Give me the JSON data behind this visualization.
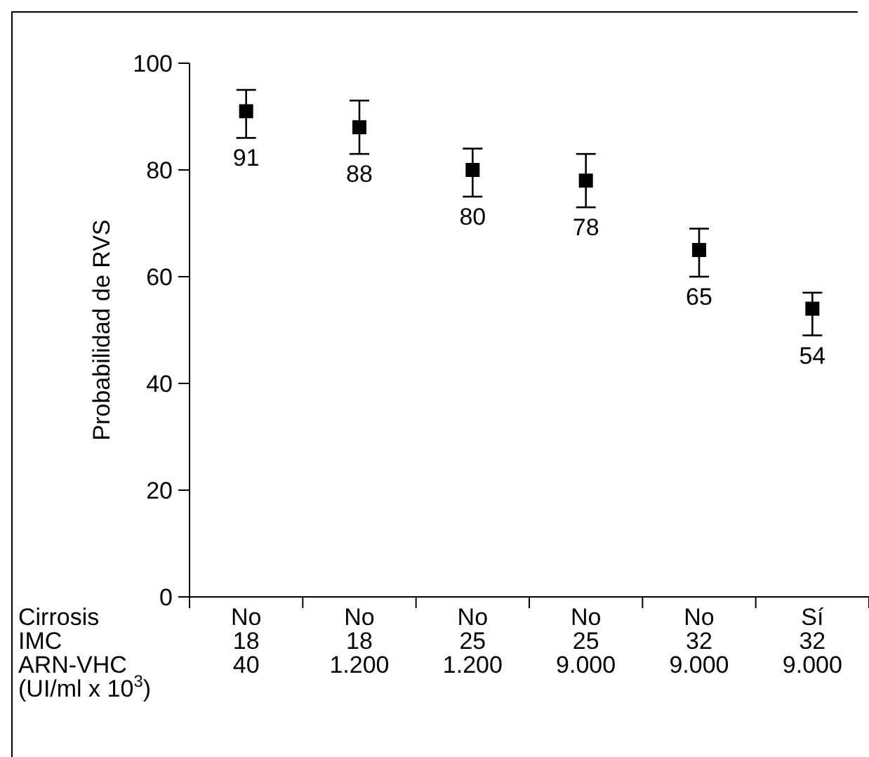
{
  "chart_data": {
    "type": "scatter",
    "ylabel": "Probabilidad de RVS",
    "xlabel": "Cirrosis\nIMC\nARN-VHC\n(UI/ml x 10$^{3}$)",
    "categories": [
      "No\n18\n40",
      "No\n18\n1.200",
      "No\n25\n1.200",
      "No\n25\n9.000",
      "No\n32\n9.000",
      "Sí\n32\n9.000"
    ],
    "values": [
      91,
      88,
      80,
      78,
      65,
      54
    ],
    "errors": [
      [
        86,
        95
      ],
      [
        83,
        93
      ],
      [
        75,
        84
      ],
      [
        73,
        83
      ],
      [
        60,
        69
      ],
      [
        49,
        57
      ]
    ],
    "color": "#000000",
    "marker": "square",
    "data_labels": true,
    "ylim": [
      0,
      100
    ],
    "yticks": [
      0,
      20,
      40,
      60,
      80,
      100
    ]
  }
}
